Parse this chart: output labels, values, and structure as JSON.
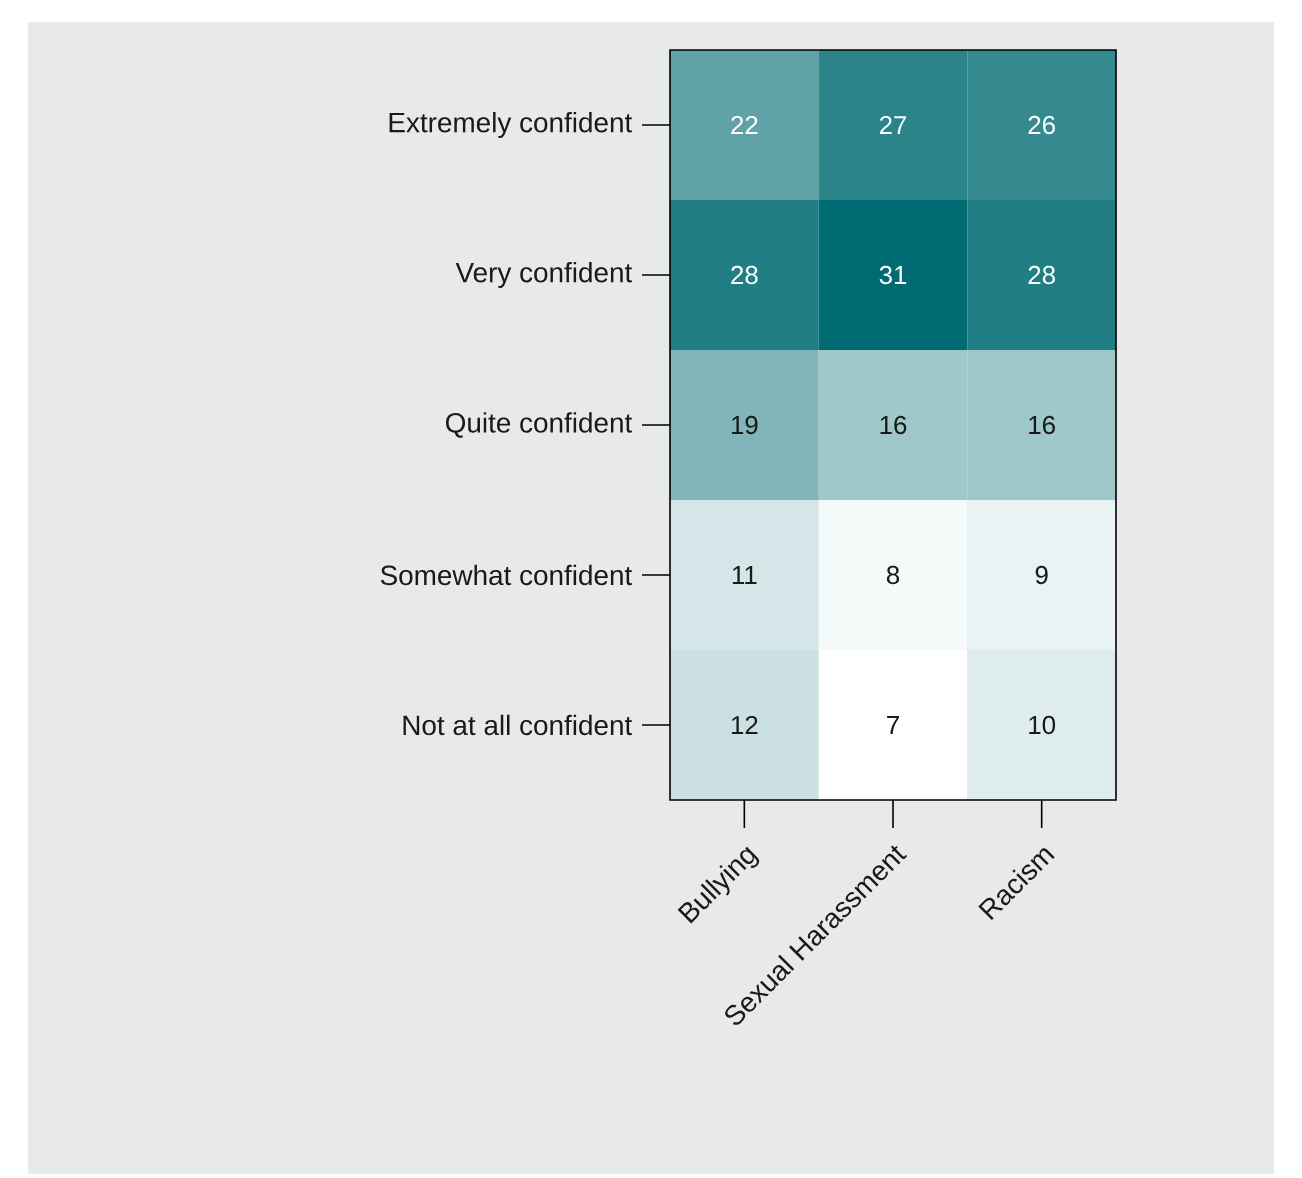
{
  "chart_data": {
    "type": "heatmap",
    "categories": [
      "Bullying",
      "Sexual Harassment",
      "Racism"
    ],
    "y_categories": [
      "Extremely confident",
      "Very confident",
      "Quite confident",
      "Somewhat confident",
      "Not at all confident"
    ],
    "cells": [
      [
        22,
        27,
        26
      ],
      [
        28,
        31,
        28
      ],
      [
        19,
        16,
        16
      ],
      [
        11,
        8,
        9
      ],
      [
        12,
        7,
        10
      ]
    ],
    "color": "#006b73",
    "data_labels": true
  }
}
